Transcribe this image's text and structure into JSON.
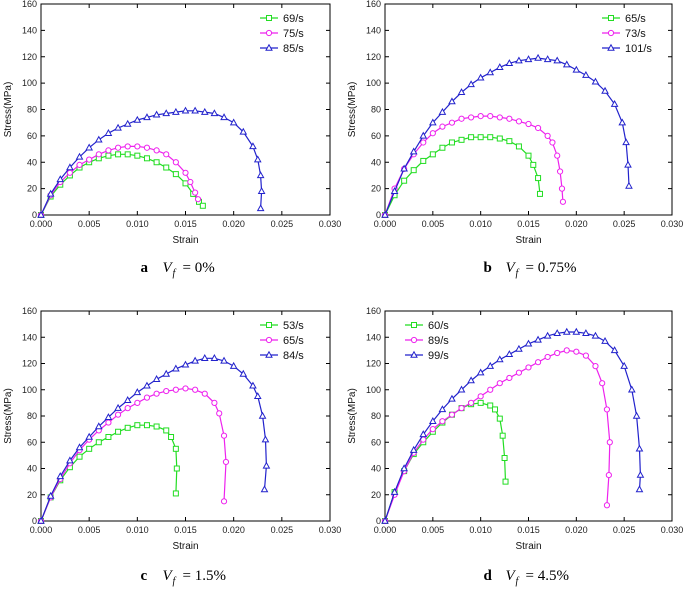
{
  "chart_data": [
    {
      "type": "line",
      "panel_letter": "a",
      "caption": {
        "var": "V",
        "sub": "f",
        "eq": "= 0%"
      },
      "xlabel": "Strain",
      "ylabel": "Stress(MPa)",
      "xlim": [
        0,
        0.03
      ],
      "ylim": [
        0,
        160
      ],
      "xticks": [
        "0.000",
        "0.005",
        "0.010",
        "0.015",
        "0.020",
        "0.025",
        "0.030"
      ],
      "yticks": [
        "0",
        "20",
        "40",
        "60",
        "80",
        "100",
        "120",
        "140",
        "160"
      ],
      "legend_position": "top-right",
      "series": [
        {
          "name": "69/s",
          "color": "#22dd22",
          "marker": "square",
          "x": [
            0,
            0.001,
            0.002,
            0.003,
            0.004,
            0.005,
            0.006,
            0.007,
            0.008,
            0.009,
            0.01,
            0.011,
            0.012,
            0.013,
            0.014,
            0.015,
            0.0158,
            0.0164,
            0.0168
          ],
          "y": [
            0,
            14,
            23,
            30,
            36,
            40,
            43,
            45,
            46,
            46,
            45,
            43,
            40,
            36,
            31,
            24,
            16,
            10,
            7
          ]
        },
        {
          "name": "75/s",
          "color": "#ee22ee",
          "marker": "circle",
          "x": [
            0,
            0.001,
            0.002,
            0.003,
            0.004,
            0.005,
            0.006,
            0.007,
            0.008,
            0.009,
            0.01,
            0.011,
            0.012,
            0.013,
            0.014,
            0.015,
            0.0155,
            0.016,
            0.0163
          ],
          "y": [
            0,
            15,
            25,
            32,
            38,
            42,
            46,
            49,
            51,
            52,
            52,
            51,
            49,
            46,
            40,
            32,
            25,
            17,
            12
          ]
        },
        {
          "name": "85/s",
          "color": "#2222cc",
          "marker": "triangle",
          "x": [
            0,
            0.001,
            0.002,
            0.003,
            0.004,
            0.005,
            0.006,
            0.007,
            0.008,
            0.009,
            0.01,
            0.011,
            0.012,
            0.013,
            0.014,
            0.015,
            0.016,
            0.017,
            0.018,
            0.019,
            0.02,
            0.021,
            0.022,
            0.0225,
            0.0228,
            0.0229,
            0.0228
          ],
          "y": [
            0,
            16,
            27,
            36,
            44,
            51,
            57,
            62,
            66,
            69,
            72,
            74,
            76,
            77,
            78,
            79,
            79,
            78,
            77,
            74,
            70,
            63,
            52,
            42,
            30,
            18,
            5
          ]
        }
      ]
    },
    {
      "type": "line",
      "panel_letter": "b",
      "caption": {
        "var": "V",
        "sub": "f",
        "eq": "= 0.75%"
      },
      "xlabel": "Strain",
      "ylabel": "Stress(MPa)",
      "xlim": [
        0,
        0.03
      ],
      "ylim": [
        0,
        160
      ],
      "xticks": [
        "0.000",
        "0.005",
        "0.010",
        "0.015",
        "0.020",
        "0.025",
        "0.030"
      ],
      "yticks": [
        "0",
        "20",
        "40",
        "60",
        "80",
        "100",
        "120",
        "140",
        "160"
      ],
      "legend_position": "top-right",
      "series": [
        {
          "name": "65/s",
          "color": "#22dd22",
          "marker": "square",
          "x": [
            0,
            0.001,
            0.002,
            0.003,
            0.004,
            0.005,
            0.006,
            0.007,
            0.008,
            0.009,
            0.01,
            0.011,
            0.012,
            0.013,
            0.014,
            0.015,
            0.0155,
            0.016,
            0.0162
          ],
          "y": [
            0,
            15,
            26,
            34,
            41,
            46,
            51,
            55,
            57,
            59,
            59,
            59,
            58,
            56,
            52,
            45,
            38,
            28,
            16
          ]
        },
        {
          "name": "73/s",
          "color": "#ee22ee",
          "marker": "circle",
          "x": [
            0,
            0.001,
            0.002,
            0.003,
            0.004,
            0.005,
            0.006,
            0.007,
            0.008,
            0.009,
            0.01,
            0.011,
            0.012,
            0.013,
            0.014,
            0.015,
            0.016,
            0.017,
            0.0175,
            0.018,
            0.0183,
            0.0185,
            0.0186
          ],
          "y": [
            0,
            20,
            35,
            46,
            55,
            62,
            67,
            70,
            73,
            74,
            75,
            75,
            74,
            73,
            71,
            69,
            66,
            60,
            55,
            45,
            33,
            20,
            10
          ]
        },
        {
          "name": "101/s",
          "color": "#2222cc",
          "marker": "triangle",
          "x": [
            0,
            0.001,
            0.002,
            0.003,
            0.004,
            0.005,
            0.006,
            0.007,
            0.008,
            0.009,
            0.01,
            0.011,
            0.012,
            0.013,
            0.014,
            0.015,
            0.016,
            0.017,
            0.018,
            0.019,
            0.02,
            0.021,
            0.022,
            0.023,
            0.024,
            0.0248,
            0.0252,
            0.0254,
            0.0255
          ],
          "y": [
            0,
            18,
            35,
            48,
            60,
            70,
            78,
            86,
            93,
            99,
            104,
            108,
            112,
            115,
            117,
            118,
            119,
            118,
            117,
            114,
            110,
            106,
            101,
            94,
            84,
            70,
            55,
            38,
            22
          ]
        }
      ]
    },
    {
      "type": "line",
      "panel_letter": "c",
      "caption": {
        "var": "V",
        "sub": "f",
        "eq": "= 1.5%"
      },
      "xlabel": "Strain",
      "ylabel": "Stress(MPa)",
      "xlim": [
        0,
        0.03
      ],
      "ylim": [
        0,
        160
      ],
      "xticks": [
        "0.000",
        "0.005",
        "0.010",
        "0.015",
        "0.020",
        "0.025",
        "0.030"
      ],
      "yticks": [
        "0",
        "20",
        "40",
        "60",
        "80",
        "100",
        "120",
        "140",
        "160"
      ],
      "legend_position": "top-right",
      "series": [
        {
          "name": "53/s",
          "color": "#22dd22",
          "marker": "square",
          "x": [
            0,
            0.001,
            0.002,
            0.003,
            0.004,
            0.005,
            0.006,
            0.007,
            0.008,
            0.009,
            0.01,
            0.011,
            0.012,
            0.013,
            0.0135,
            0.014,
            0.0141,
            0.014
          ],
          "y": [
            0,
            18,
            31,
            41,
            49,
            55,
            60,
            64,
            68,
            71,
            73,
            73,
            72,
            69,
            64,
            55,
            40,
            21
          ]
        },
        {
          "name": "65/s",
          "color": "#ee22ee",
          "marker": "circle",
          "x": [
            0,
            0.001,
            0.002,
            0.003,
            0.004,
            0.005,
            0.006,
            0.007,
            0.008,
            0.009,
            0.01,
            0.011,
            0.012,
            0.013,
            0.014,
            0.015,
            0.016,
            0.017,
            0.018,
            0.0185,
            0.019,
            0.0192,
            0.019
          ],
          "y": [
            0,
            18,
            32,
            44,
            54,
            62,
            69,
            75,
            81,
            86,
            90,
            94,
            97,
            99,
            100,
            101,
            100,
            97,
            90,
            82,
            65,
            45,
            15
          ]
        },
        {
          "name": "84/s",
          "color": "#2222cc",
          "marker": "triangle",
          "x": [
            0,
            0.001,
            0.002,
            0.003,
            0.004,
            0.005,
            0.006,
            0.007,
            0.008,
            0.009,
            0.01,
            0.011,
            0.012,
            0.013,
            0.014,
            0.015,
            0.016,
            0.017,
            0.018,
            0.019,
            0.02,
            0.021,
            0.022,
            0.0225,
            0.023,
            0.0233,
            0.0234,
            0.0232
          ],
          "y": [
            0,
            19,
            34,
            46,
            56,
            64,
            72,
            79,
            86,
            92,
            98,
            103,
            108,
            112,
            116,
            119,
            122,
            124,
            124,
            122,
            118,
            112,
            103,
            95,
            80,
            62,
            42,
            24
          ]
        }
      ]
    },
    {
      "type": "line",
      "panel_letter": "d",
      "caption": {
        "var": "V",
        "sub": "f",
        "eq": "= 4.5%"
      },
      "xlabel": "Strain",
      "ylabel": "Stress(MPa)",
      "xlim": [
        0,
        0.03
      ],
      "ylim": [
        0,
        160
      ],
      "xticks": [
        "0.000",
        "0.005",
        "0.010",
        "0.015",
        "0.020",
        "0.025",
        "0.030"
      ],
      "yticks": [
        "0",
        "20",
        "40",
        "60",
        "80",
        "100",
        "120",
        "140",
        "160"
      ],
      "legend_position": "top-left",
      "series": [
        {
          "name": "60/s",
          "color": "#22dd22",
          "marker": "square",
          "x": [
            0,
            0.001,
            0.002,
            0.003,
            0.004,
            0.005,
            0.006,
            0.007,
            0.008,
            0.009,
            0.01,
            0.011,
            0.0115,
            0.012,
            0.0123,
            0.0125,
            0.0126
          ],
          "y": [
            0,
            22,
            38,
            51,
            60,
            68,
            75,
            81,
            86,
            89,
            90,
            88,
            85,
            78,
            65,
            48,
            30
          ]
        },
        {
          "name": "89/s",
          "color": "#ee22ee",
          "marker": "circle",
          "x": [
            0,
            0.001,
            0.002,
            0.003,
            0.004,
            0.005,
            0.006,
            0.007,
            0.008,
            0.009,
            0.01,
            0.011,
            0.012,
            0.013,
            0.014,
            0.015,
            0.016,
            0.017,
            0.018,
            0.019,
            0.02,
            0.021,
            0.022,
            0.0227,
            0.0232,
            0.0235,
            0.0234,
            0.0232
          ],
          "y": [
            0,
            20,
            38,
            52,
            62,
            70,
            76,
            81,
            86,
            90,
            95,
            100,
            105,
            109,
            113,
            117,
            121,
            125,
            128,
            130,
            129,
            126,
            118,
            105,
            85,
            60,
            35,
            12
          ]
        },
        {
          "name": "99/s",
          "color": "#2222cc",
          "marker": "triangle",
          "x": [
            0,
            0.001,
            0.002,
            0.003,
            0.004,
            0.005,
            0.006,
            0.007,
            0.008,
            0.009,
            0.01,
            0.011,
            0.012,
            0.013,
            0.014,
            0.015,
            0.016,
            0.017,
            0.018,
            0.019,
            0.02,
            0.021,
            0.022,
            0.023,
            0.024,
            0.025,
            0.0258,
            0.0263,
            0.0266,
            0.0267,
            0.0266
          ],
          "y": [
            0,
            22,
            40,
            54,
            66,
            76,
            85,
            93,
            100,
            107,
            113,
            118,
            123,
            127,
            131,
            135,
            138,
            141,
            143,
            144,
            144,
            143,
            141,
            137,
            130,
            118,
            100,
            80,
            55,
            35,
            24
          ]
        }
      ]
    }
  ]
}
